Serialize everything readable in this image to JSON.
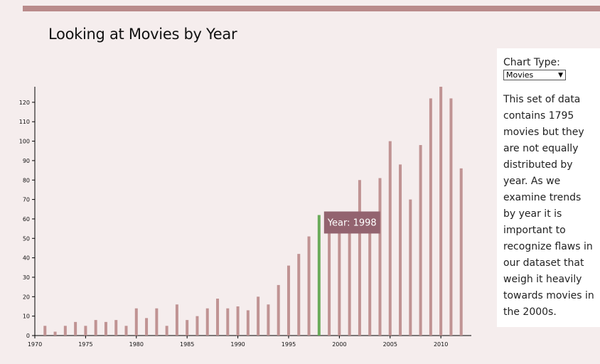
{
  "title": "Looking at Movies by Year",
  "colors": {
    "bar": "#c09393",
    "highlight": "#6aab5a",
    "tooltip_bg": "#93636f",
    "band": "#b98b8b"
  },
  "side_panel": {
    "label": "Chart Type:",
    "select_value": "Movies",
    "select_icon": "chevron-down-icon",
    "description": "This set of data contains 1795 movies but they are not equally distributed by year. As we examine trends by year it is important to recognize flaws in our dataset that weigh it heavily towards movies in the 2000s."
  },
  "tooltip": {
    "text": "Year: 1998"
  },
  "chart_data": {
    "type": "bar",
    "title": "Looking at Movies by Year",
    "xlabel": "",
    "ylabel": "",
    "x": [
      1971,
      1972,
      1973,
      1974,
      1975,
      1976,
      1977,
      1978,
      1979,
      1980,
      1981,
      1982,
      1983,
      1984,
      1985,
      1986,
      1987,
      1988,
      1989,
      1990,
      1991,
      1992,
      1993,
      1994,
      1995,
      1996,
      1997,
      1998,
      1999,
      2000,
      2001,
      2002,
      2003,
      2004,
      2005,
      2006,
      2007,
      2008,
      2009,
      2010,
      2011,
      2012
    ],
    "values": [
      5,
      2,
      5,
      7,
      5,
      8,
      7,
      8,
      5,
      14,
      9,
      14,
      5,
      16,
      8,
      10,
      14,
      19,
      14,
      15,
      13,
      20,
      16,
      26,
      36,
      42,
      51,
      62,
      55,
      56,
      60,
      80,
      57,
      81,
      100,
      88,
      70,
      98,
      122,
      128,
      122,
      86
    ],
    "highlighted": 1998,
    "xlim": [
      1970,
      2013
    ],
    "ylim": [
      0,
      128
    ],
    "x_ticks": [
      1970,
      1975,
      1980,
      1985,
      1990,
      1995,
      2000,
      2005,
      2010
    ],
    "y_ticks": [
      0,
      10,
      20,
      30,
      40,
      50,
      60,
      70,
      80,
      90,
      100,
      110,
      120
    ],
    "grid": false,
    "legend": "none"
  }
}
